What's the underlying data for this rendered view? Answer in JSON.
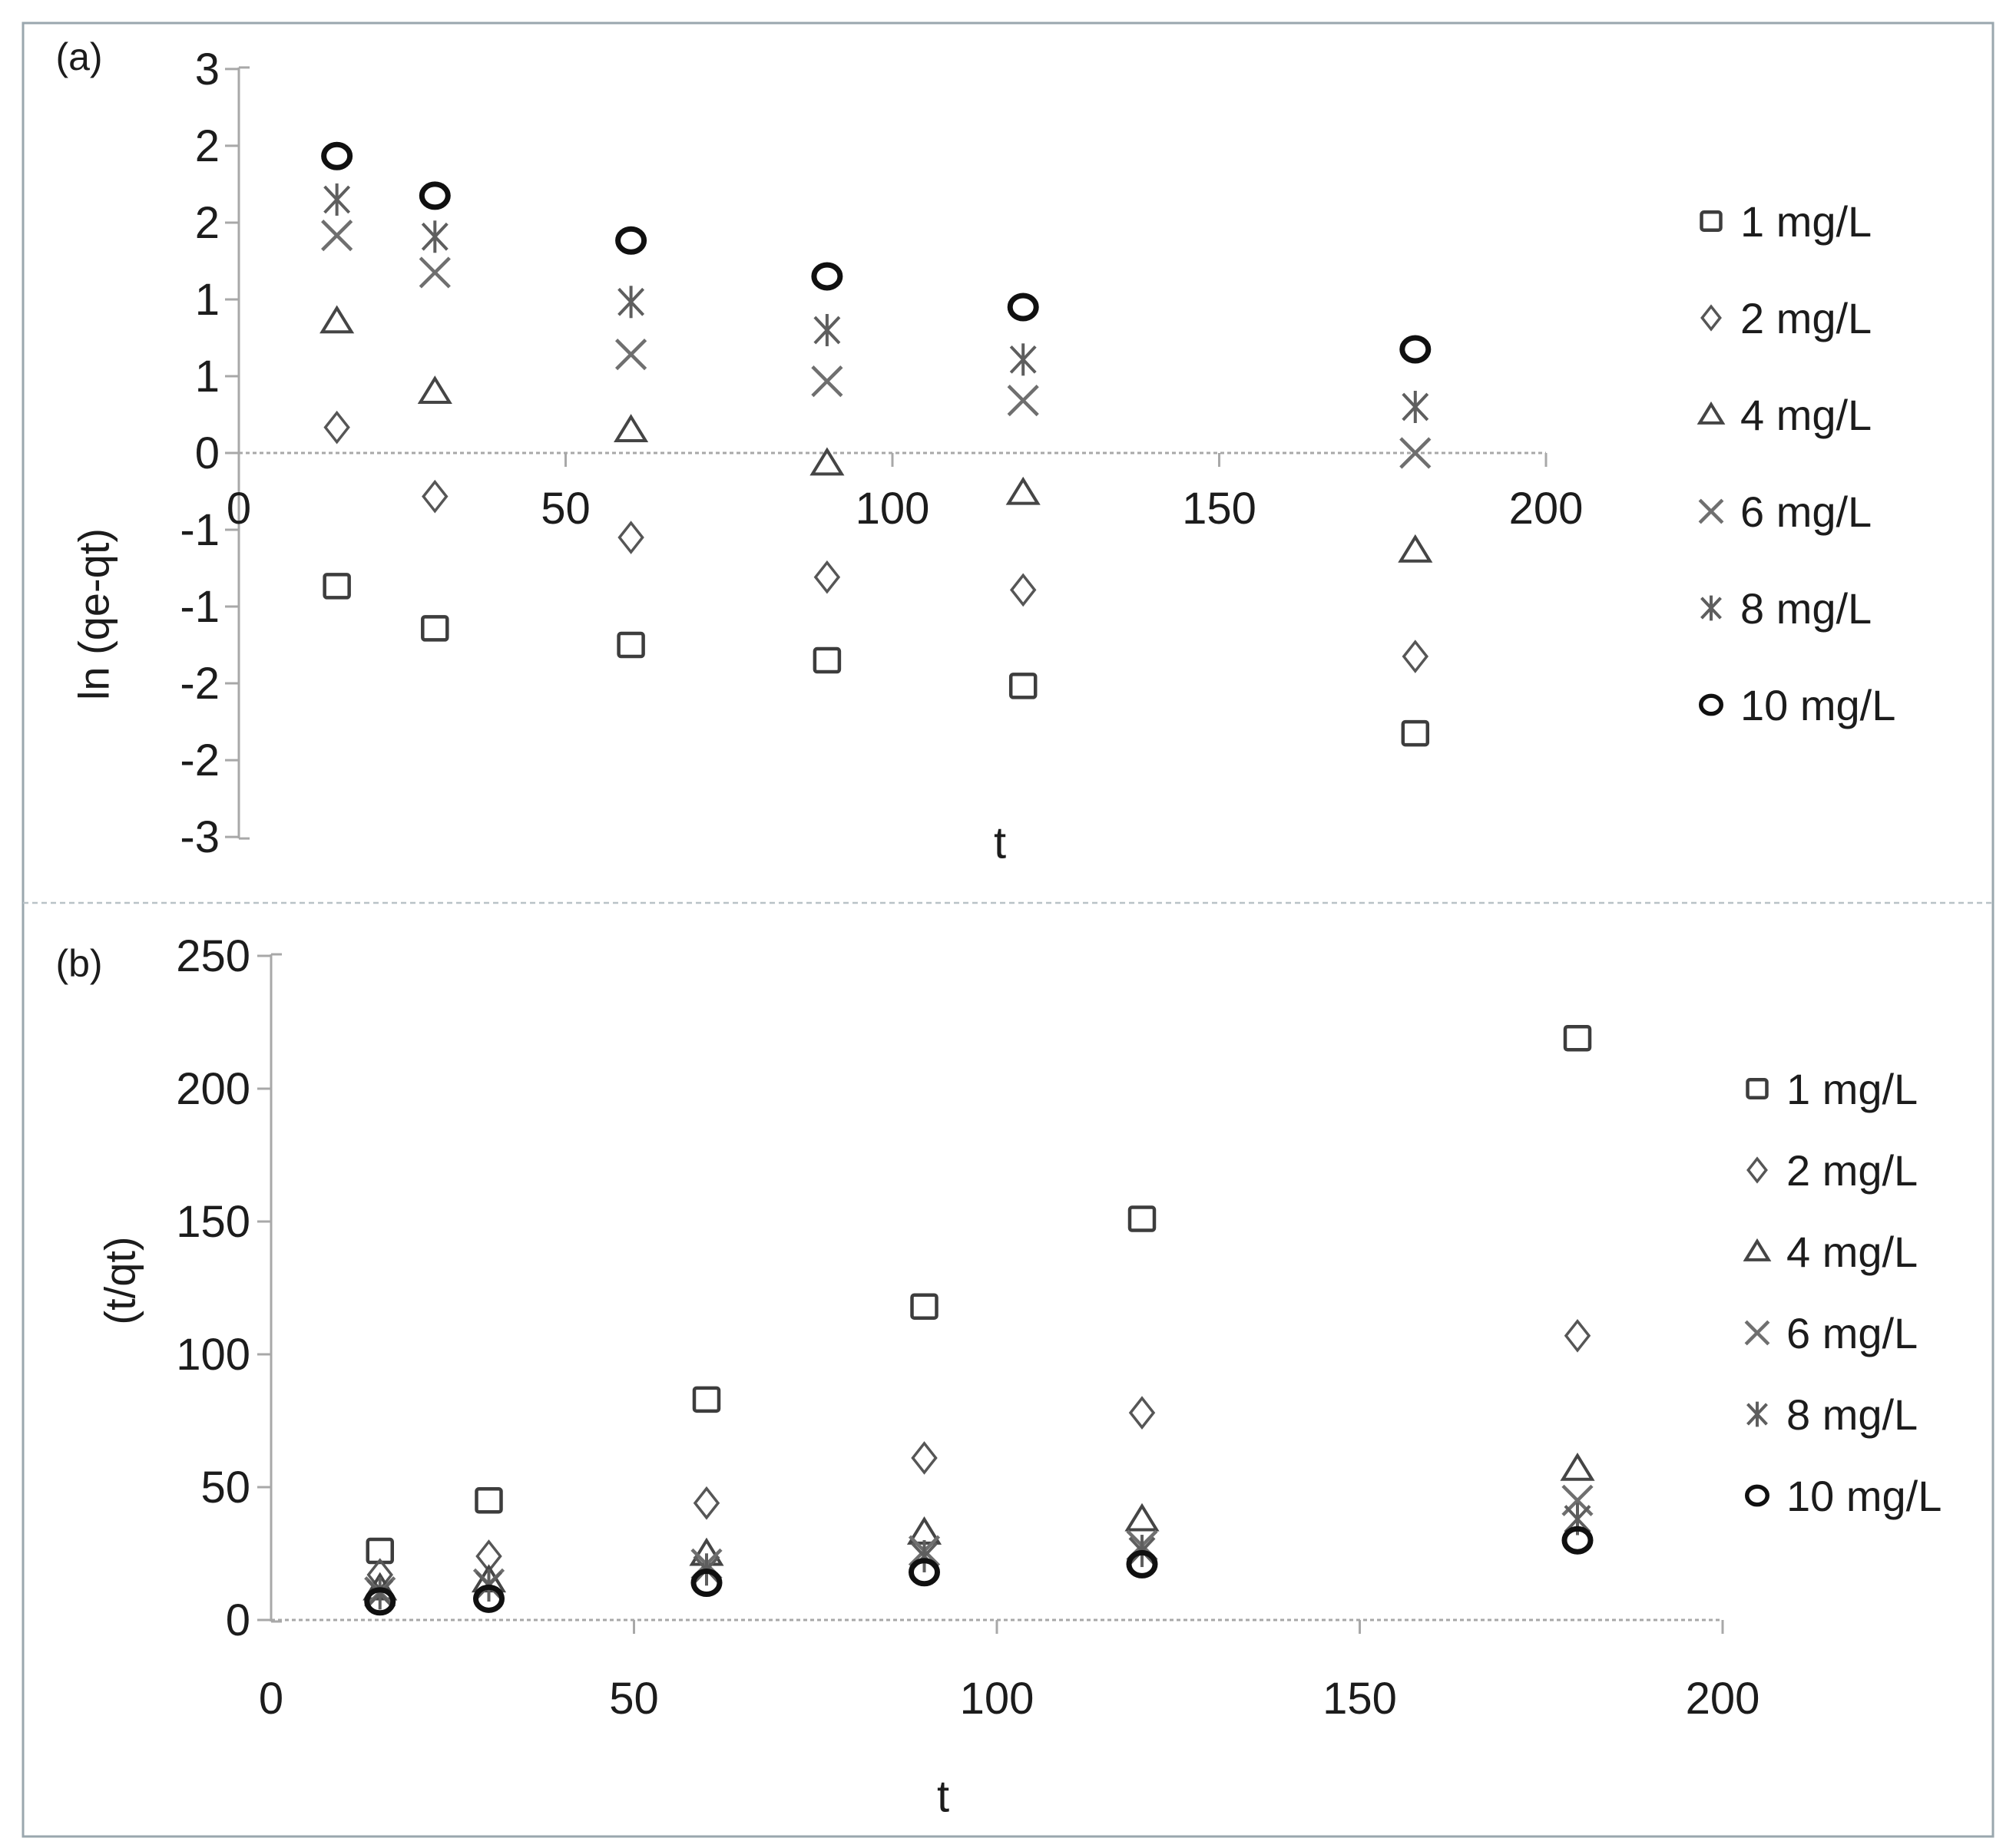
{
  "figure": {
    "panel_a_label": "(a)",
    "panel_b_label": "(b)",
    "border_color": "#9aa7ae",
    "text_color": "#1c1c1c",
    "axis_line_color": "#a8a8a8"
  },
  "chart_data": [
    {
      "type": "scatter",
      "panel": "a",
      "xlabel": "t",
      "ylabel": "ln (qe-qt)",
      "xlim": [
        0,
        200
      ],
      "ylim": [
        -3,
        3
      ],
      "grid": false,
      "legend_position": "right",
      "x_tick_labels": [
        "0",
        "50",
        "100",
        "150",
        "200"
      ],
      "x_tick_values": [
        0,
        50,
        100,
        150,
        200
      ],
      "y_tick_labels": [
        "3",
        "2",
        "2",
        "1",
        "1",
        "0",
        "-1",
        "-1",
        "-2",
        "-2",
        "-3"
      ],
      "y_tick_values": [
        3,
        2.4,
        1.8,
        1.2,
        0.6,
        0,
        -0.6,
        -1.2,
        -1.8,
        -2.4,
        -3
      ],
      "x": [
        15,
        30,
        60,
        90,
        120,
        180
      ],
      "series": [
        {
          "name": "1 mg/L",
          "marker": "square",
          "color": "#3d3d3d",
          "values": [
            -1.04,
            -1.37,
            -1.5,
            -1.62,
            -1.82,
            -2.19
          ]
        },
        {
          "name": "2 mg/L",
          "marker": "diamond",
          "color": "#565656",
          "values": [
            0.2,
            -0.34,
            -0.66,
            -0.97,
            -1.07,
            -1.59
          ]
        },
        {
          "name": "4 mg/L",
          "marker": "triangle",
          "color": "#454545",
          "values": [
            1.03,
            0.48,
            0.18,
            -0.08,
            -0.31,
            -0.76
          ]
        },
        {
          "name": "6 mg/L",
          "marker": "x",
          "color": "#6f6f6f",
          "values": [
            1.7,
            1.41,
            0.77,
            0.56,
            0.41,
            0.0
          ]
        },
        {
          "name": "8 mg/L",
          "marker": "asterisk",
          "color": "#5e5e5e",
          "values": [
            1.98,
            1.69,
            1.18,
            0.96,
            0.73,
            0.36
          ]
        },
        {
          "name": "10 mg/L",
          "marker": "circle",
          "color": "#101010",
          "values": [
            2.32,
            2.01,
            1.66,
            1.38,
            1.14,
            0.81
          ]
        }
      ],
      "legend": [
        "1 mg/L",
        "2 mg/L",
        "4 mg/L",
        "6 mg/L",
        "8 mg/L",
        "10 mg/L"
      ]
    },
    {
      "type": "scatter",
      "panel": "b",
      "xlabel": "t",
      "ylabel": "(t/qt)",
      "xlim": [
        0,
        200
      ],
      "ylim": [
        0,
        250
      ],
      "grid": false,
      "legend_position": "right",
      "x_tick_labels": [
        "0",
        "50",
        "100",
        "150",
        "200"
      ],
      "x_tick_values": [
        0,
        50,
        100,
        150,
        200
      ],
      "y_tick_labels": [
        "250",
        "200",
        "150",
        "100",
        "50",
        "0"
      ],
      "y_tick_values": [
        250,
        200,
        150,
        100,
        50,
        0
      ],
      "x": [
        15,
        30,
        60,
        90,
        120,
        180
      ],
      "series": [
        {
          "name": "1 mg/L",
          "marker": "square",
          "color": "#3d3d3d",
          "values": [
            26,
            45,
            83,
            118,
            151,
            219
          ]
        },
        {
          "name": "2 mg/L",
          "marker": "diamond",
          "color": "#565656",
          "values": [
            17,
            24,
            44,
            61,
            78,
            107
          ]
        },
        {
          "name": "4 mg/L",
          "marker": "triangle",
          "color": "#454545",
          "values": [
            12,
            15,
            25,
            33,
            38,
            57
          ]
        },
        {
          "name": "6 mg/L",
          "marker": "x",
          "color": "#6f6f6f",
          "values": [
            10.5,
            13.5,
            21,
            26,
            28,
            45
          ]
        },
        {
          "name": "8 mg/L",
          "marker": "asterisk",
          "color": "#5e5e5e",
          "values": [
            10,
            13,
            19,
            24,
            26,
            38
          ]
        },
        {
          "name": "10 mg/L",
          "marker": "circle",
          "color": "#101010",
          "values": [
            7,
            8,
            14,
            18,
            21,
            30
          ]
        }
      ],
      "legend": [
        "1 mg/L",
        "2 mg/L",
        "4 mg/L",
        "6 mg/L",
        "8 mg/L",
        "10 mg/L"
      ]
    }
  ]
}
